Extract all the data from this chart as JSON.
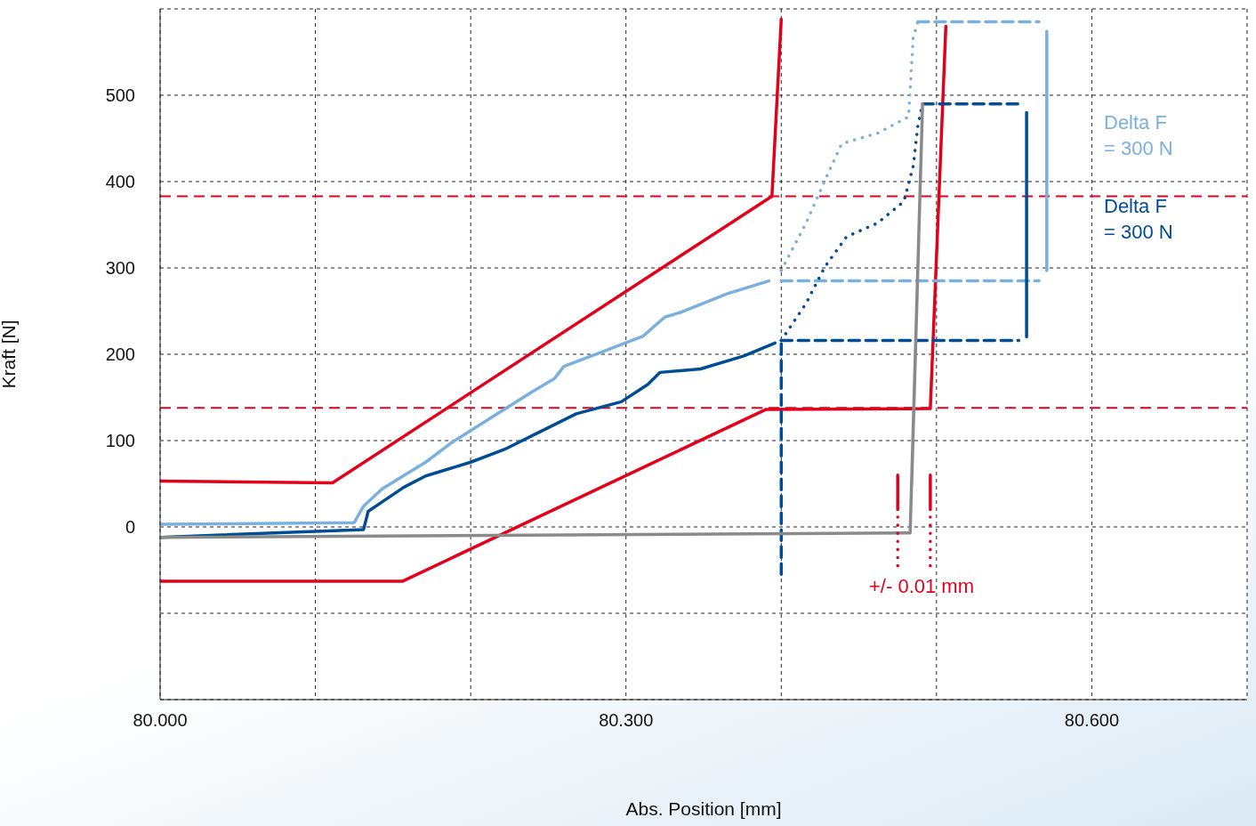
{
  "chart_data": {
    "type": "line",
    "xlabel": "Abs. Position [mm]",
    "ylabel": "Kraft [N]",
    "xlim": [
      80.0,
      80.7
    ],
    "xticks": [
      {
        "value": 80.0,
        "label": "80.000"
      },
      {
        "value": 80.1,
        "label": null
      },
      {
        "value": 80.2,
        "label": null
      },
      {
        "value": 80.3,
        "label": "80.300"
      },
      {
        "value": 80.4,
        "label": null
      },
      {
        "value": 80.5,
        "label": null
      },
      {
        "value": 80.6,
        "label": "80.600"
      }
    ],
    "ylim": [
      -200,
      600
    ],
    "yticks": [
      {
        "value": -100,
        "label": null
      },
      0,
      100,
      200,
      300,
      400,
      500
    ],
    "grid": true,
    "marker": "none",
    "ref_lines": [
      {
        "axis": "y",
        "value": 383,
        "color": "#e2001a",
        "line_style": "dashed"
      },
      {
        "axis": "y",
        "value": 138,
        "color": "#e2001a",
        "line_style": "dashed"
      }
    ],
    "series": [
      {
        "color": "#e2001a",
        "line_style": "solid",
        "x": [
          80.0,
          80.111,
          80.394,
          80.4
        ],
        "values": [
          53,
          51,
          383,
          588
        ]
      },
      {
        "color": "#e2001a",
        "line_style": "solid",
        "x": [
          80.0,
          80.156,
          80.39,
          80.496,
          80.506
        ],
        "values": [
          -63,
          -63,
          136,
          137,
          580
        ]
      },
      {
        "color": "#7ab0dd",
        "line_style": "solid",
        "x": [
          80.0,
          80.125,
          80.131,
          80.143,
          80.171,
          80.188,
          80.217,
          80.24,
          80.254,
          80.26,
          80.285,
          80.311,
          80.325,
          80.336,
          80.365,
          80.392
        ],
        "values": [
          3,
          5,
          24,
          44,
          75,
          98,
          131,
          157,
          172,
          186,
          203,
          221,
          243,
          249,
          270,
          285
        ]
      },
      {
        "color": "#7ab0dd",
        "line_style": "dotted",
        "x": [
          80.4,
          80.416,
          80.431,
          80.439,
          80.462,
          80.482,
          80.485,
          80.488
        ],
        "values": [
          297,
          352,
          413,
          444,
          456,
          475,
          567,
          585
        ]
      },
      {
        "color": "#7ab0dd",
        "line_style": "dashed",
        "x": [
          80.4,
          80.566
        ],
        "values": [
          285,
          285
        ]
      },
      {
        "color": "#7ab0dd",
        "line_style": "dashed",
        "x": [
          80.488,
          80.566
        ],
        "values": [
          585,
          585
        ]
      },
      {
        "color": "#7ab0dd",
        "line_style": "solid",
        "x": [
          80.571,
          80.571
        ],
        "values": [
          297,
          574
        ]
      },
      {
        "color": "#004d94",
        "line_style": "solid",
        "x": [
          80.0,
          80.131,
          80.134,
          80.143,
          80.157,
          80.171,
          80.2,
          80.222,
          80.24,
          80.268,
          80.297,
          80.314,
          80.322,
          80.348,
          80.376,
          80.396
        ],
        "values": [
          -12,
          -3,
          18,
          29,
          46,
          59,
          75,
          90,
          106,
          131,
          145,
          165,
          179,
          183,
          198,
          213
        ]
      },
      {
        "color": "#004d94",
        "line_style": "dotted",
        "x": [
          80.4,
          80.416,
          80.428,
          80.442,
          80.462,
          80.479,
          80.485,
          80.488,
          80.491
        ],
        "values": [
          216,
          259,
          301,
          336,
          352,
          377,
          418,
          465,
          490
        ]
      },
      {
        "color": "#004d94",
        "line_style": "dashed",
        "x": [
          80.4,
          80.553
        ],
        "values": [
          216,
          216
        ]
      },
      {
        "color": "#004d94",
        "line_style": "dashed",
        "x": [
          80.491,
          80.553
        ],
        "values": [
          490,
          490
        ]
      },
      {
        "color": "#004d94",
        "line_style": "dashed",
        "x": [
          80.4,
          80.4
        ],
        "values": [
          -55,
          216
        ]
      },
      {
        "color": "#004d94",
        "line_style": "solid",
        "x": [
          80.558,
          80.558
        ],
        "values": [
          220,
          480
        ]
      },
      {
        "color": "#8a8a8a",
        "line_style": "solid",
        "x": [
          80.0,
          80.483,
          80.491,
          80.484
        ],
        "values": [
          -12,
          -7,
          490,
          49
        ]
      },
      {
        "color": "#e2001a",
        "line_style": "solid",
        "x": [
          80.475,
          80.475
        ],
        "values": [
          20,
          60
        ]
      },
      {
        "color": "#e2001a",
        "line_style": "solid",
        "x": [
          80.496,
          80.496
        ],
        "values": [
          20,
          60
        ]
      },
      {
        "color": "#e2001a",
        "line_style": "dotted",
        "x": [
          80.475,
          80.475
        ],
        "values": [
          -45,
          15
        ]
      },
      {
        "color": "#e2001a",
        "line_style": "dotted",
        "x": [
          80.496,
          80.496
        ],
        "values": [
          -45,
          15
        ]
      }
    ],
    "annotations": [
      "Delta F\n= 300 N",
      "Delta F\n= 300 N",
      "+/- 0.01 mm"
    ]
  }
}
